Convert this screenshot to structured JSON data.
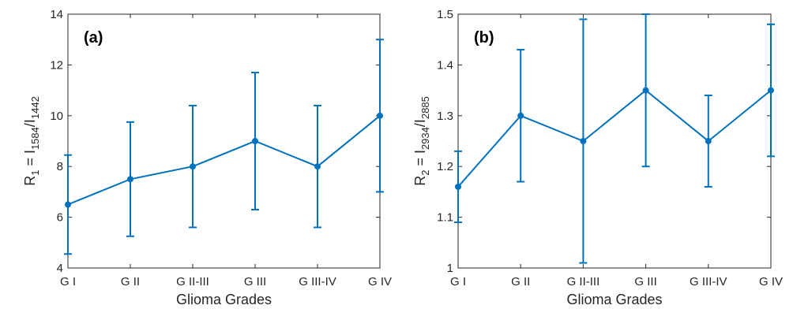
{
  "chart_data": [
    {
      "type": "line",
      "panel_label": "(a)",
      "categories": [
        "G I",
        "G II",
        "G II-III",
        "G III",
        "G III-IV",
        "G IV"
      ],
      "series": [
        {
          "values": [
            6.5,
            7.5,
            8.0,
            9.0,
            8.0,
            10.0
          ],
          "error_low": [
            4.55,
            5.25,
            5.6,
            6.3,
            5.6,
            7.0
          ],
          "error_high": [
            8.45,
            9.75,
            10.4,
            11.7,
            10.4,
            13.0
          ]
        }
      ],
      "xlabel": "Glioma Grades",
      "ylabel": {
        "base": "R",
        "base_sub": "1",
        "mid": " = I",
        "mid_sub": "1584",
        "sep": "/I",
        "end_sub": "1442"
      },
      "ylim": [
        4,
        14
      ],
      "yticks": [
        4,
        6,
        8,
        10,
        12,
        14
      ],
      "ytick_labels": [
        "4",
        "6",
        "8",
        "10",
        "12",
        "14"
      ],
      "grid": false,
      "color": "#0072BD"
    },
    {
      "type": "line",
      "panel_label": "(b)",
      "categories": [
        "G I",
        "G II",
        "G II-III",
        "G III",
        "G III-IV",
        "G IV"
      ],
      "series": [
        {
          "values": [
            1.16,
            1.3,
            1.25,
            1.35,
            1.25,
            1.35
          ],
          "error_low": [
            1.09,
            1.17,
            1.01,
            1.2,
            1.16,
            1.22
          ],
          "error_high": [
            1.23,
            1.43,
            1.49,
            1.5,
            1.34,
            1.48
          ]
        }
      ],
      "xlabel": "Glioma Grades",
      "ylabel": {
        "base": "R",
        "base_sub": "2",
        "mid": " = I",
        "mid_sub": "2934",
        "sep": "/I",
        "end_sub": "2885"
      },
      "ylim": [
        1,
        1.5
      ],
      "yticks": [
        1,
        1.1,
        1.2,
        1.3,
        1.4,
        1.5
      ],
      "ytick_labels": [
        "1",
        "1.1",
        "1.2",
        "1.3",
        "1.4",
        "1.5"
      ],
      "grid": false,
      "color": "#0072BD"
    }
  ]
}
